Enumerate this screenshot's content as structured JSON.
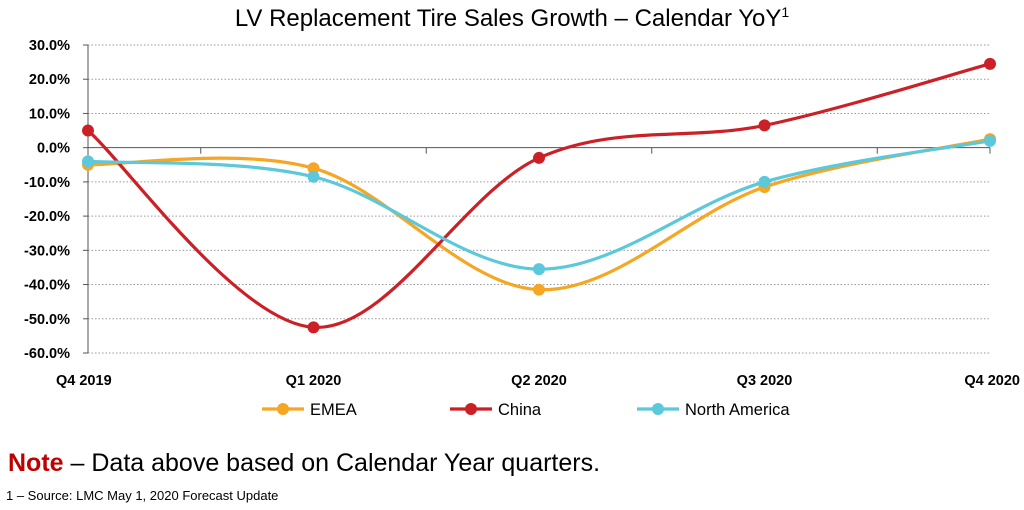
{
  "chart_data": {
    "type": "line",
    "title": "LV Replacement Tire Sales Growth – Calendar YoY",
    "title_superscript": "1",
    "categories": [
      "Q4 2019",
      "Q1 2020",
      "Q2 2020",
      "Q3 2020",
      "Q4 2020"
    ],
    "y_ticks": [
      "30.0%",
      "20.0%",
      "10.0%",
      "0.0%",
      "-10.0%",
      "-20.0%",
      "-30.0%",
      "-40.0%",
      "-50.0%",
      "-60.0%"
    ],
    "ylim": [
      -60,
      30
    ],
    "y_unit": "%",
    "grid": true,
    "smooth": true,
    "legend_position": "bottom",
    "series": [
      {
        "name": "EMEA",
        "color": "#f5a623",
        "values": [
          -5.0,
          -6.0,
          -41.5,
          -11.5,
          2.5
        ]
      },
      {
        "name": "China",
        "color": "#cc2027",
        "values": [
          5.0,
          -52.5,
          -3.0,
          6.5,
          24.5
        ]
      },
      {
        "name": "North America",
        "color": "#5bc8dc",
        "values": [
          -4.0,
          -8.5,
          -35.5,
          -10.0,
          2.0
        ]
      }
    ]
  },
  "note": {
    "label": "Note",
    "text": " – Data above based on Calendar Year quarters."
  },
  "footnote": "1 – Source: LMC May 1, 2020 Forecast Update"
}
